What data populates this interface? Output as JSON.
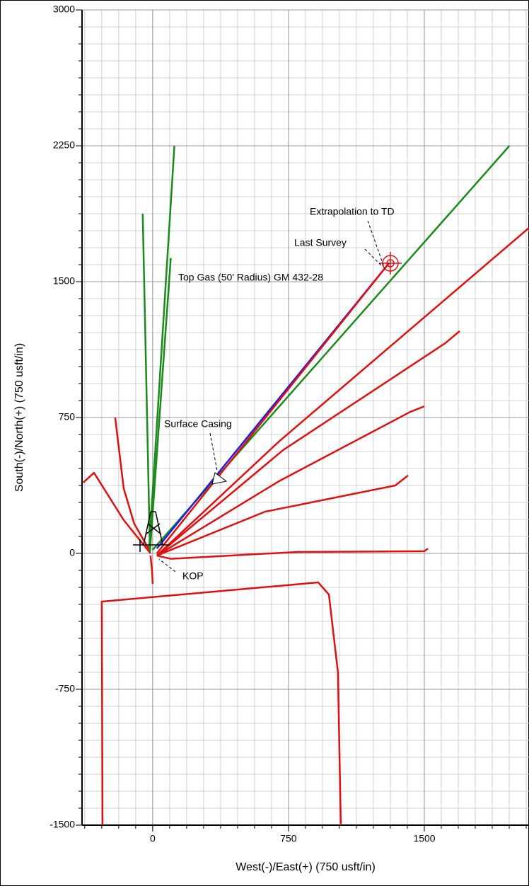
{
  "chart_data": {
    "type": "line",
    "xlabel": "West(-)/East(+) (750 usft/in)",
    "ylabel": "South(-)/North(+) (750 usft/in)",
    "xlim": [
      -390,
      2078
    ],
    "ylim": [
      -1500,
      3000
    ],
    "xticks": [
      0,
      750,
      1500
    ],
    "yticks": [
      -1500,
      -750,
      0,
      750,
      1500,
      2250,
      3000
    ],
    "grid": true,
    "grid_minor_divisions": 8,
    "annotations": [
      "Extrapolation to TD",
      "Last Survey",
      "Top Gas (50' Radius) GM 432-28",
      "Surface Casing",
      "KOP"
    ],
    "series": [
      {
        "color": "#1a8a1a",
        "x": [
          -20,
          120
        ],
        "y": [
          20,
          2250
        ]
      },
      {
        "color": "#1a8a1a",
        "x": [
          -15,
          -55
        ],
        "y": [
          10,
          1875
        ]
      },
      {
        "color": "#1a8a1a",
        "x": [
          -15,
          100
        ],
        "y": [
          10,
          1630
        ]
      },
      {
        "color": "#1a8a1a",
        "x": [
          0,
          1970
        ],
        "y": [
          20,
          2250
        ]
      },
      {
        "color": "#2020e0",
        "x": [
          23,
          1305
        ],
        "y": [
          27,
          1602
        ]
      },
      {
        "color": "#e01010",
        "x": [
          23,
          1305
        ],
        "y": [
          0,
          1602
        ]
      },
      {
        "color": "#e01010",
        "x": [
          23,
          700,
          2078
        ],
        "y": [
          -12,
          620,
          1797
        ]
      },
      {
        "color": "#e01010",
        "x": [
          23,
          720,
          1615,
          1695
        ],
        "y": [
          -12,
          570,
          1160,
          1227
        ]
      },
      {
        "color": "#e01010",
        "x": [
          23,
          700,
          1420,
          1500
        ],
        "y": [
          -12,
          400,
          780,
          812
        ]
      },
      {
        "color": "#e01010",
        "x": [
          23,
          620,
          1340,
          1410
        ],
        "y": [
          -12,
          230,
          375,
          430
        ]
      },
      {
        "color": "#e01010",
        "x": [
          23,
          100,
          800,
          1500,
          1520
        ],
        "y": [
          -12,
          -30,
          8,
          12,
          27
        ]
      },
      {
        "color": "#e01010",
        "x": [
          -23,
          -102,
          -160,
          -207
        ],
        "y": [
          27,
          164,
          359,
          750
        ]
      },
      {
        "color": "#e01010",
        "x": [
          -12,
          -160,
          -324,
          -383
        ],
        "y": [
          0,
          184,
          445,
          391
        ]
      },
      {
        "color": "#e01010",
        "x": [
          -12,
          -3,
          0
        ],
        "y": [
          -12,
          -100,
          -168
        ]
      },
      {
        "color": "#e01010",
        "x": [
          -277,
          -281,
          914,
          973,
          1023,
          1039
        ],
        "y": [
          -1500,
          -266,
          -160,
          -227,
          -656,
          -1500
        ]
      }
    ]
  }
}
